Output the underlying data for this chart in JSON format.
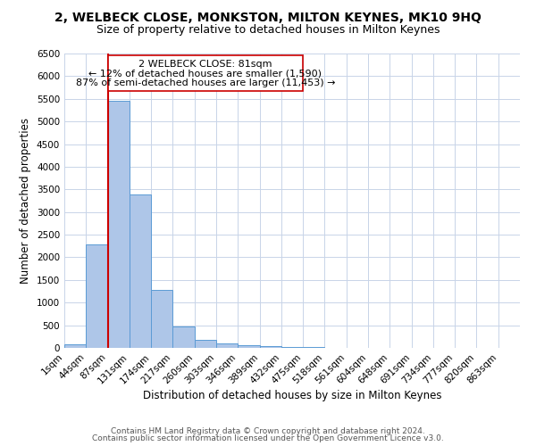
{
  "title": "2, WELBECK CLOSE, MONKSTON, MILTON KEYNES, MK10 9HQ",
  "subtitle": "Size of property relative to detached houses in Milton Keynes",
  "xlabel": "Distribution of detached houses by size in Milton Keynes",
  "ylabel": "Number of detached properties",
  "bar_labels": [
    "1sqm",
    "44sqm",
    "87sqm",
    "131sqm",
    "174sqm",
    "217sqm",
    "260sqm",
    "303sqm",
    "346sqm",
    "389sqm",
    "432sqm",
    "475sqm",
    "518sqm",
    "561sqm",
    "604sqm",
    "648sqm",
    "691sqm",
    "734sqm",
    "777sqm",
    "820sqm",
    "863sqm"
  ],
  "bar_values": [
    75,
    2280,
    5450,
    3380,
    1290,
    480,
    175,
    105,
    50,
    30,
    20,
    10,
    8,
    5,
    4,
    3,
    2,
    2,
    2,
    2,
    2
  ],
  "bar_color": "#aec6e8",
  "bar_edge_color": "#5b9bd5",
  "ylim": [
    0,
    6500
  ],
  "yticks": [
    0,
    500,
    1000,
    1500,
    2000,
    2500,
    3000,
    3500,
    4000,
    4500,
    5000,
    5500,
    6000,
    6500
  ],
  "property_label": "2 WELBECK CLOSE: 81sqm",
  "annotation_line1": "← 12% of detached houses are smaller (1,590)",
  "annotation_line2": "87% of semi-detached houses are larger (11,453) →",
  "vline_color": "#cc0000",
  "annotation_box_color": "#ffffff",
  "annotation_box_edge": "#cc0000",
  "footer_line1": "Contains HM Land Registry data © Crown copyright and database right 2024.",
  "footer_line2": "Contains public sector information licensed under the Open Government Licence v3.0.",
  "bg_color": "#ffffff",
  "grid_color": "#c8d4e8",
  "title_fontsize": 10,
  "subtitle_fontsize": 9,
  "axis_label_fontsize": 8.5,
  "tick_fontsize": 7.5,
  "footer_fontsize": 6.5,
  "annotation_fontsize": 8,
  "bin_width": 43
}
